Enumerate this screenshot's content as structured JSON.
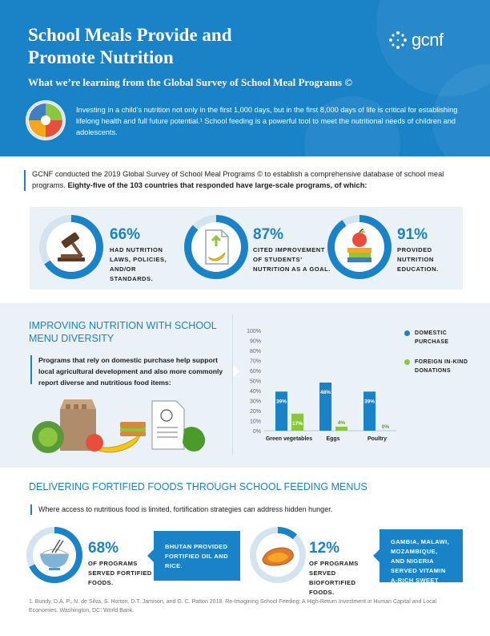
{
  "header": {
    "title_line1": "School Meals Provide and",
    "title_line2": "Promote Nutrition",
    "subtitle": "What we’re learning from the Global Survey of School Meal Programs ©",
    "logo_text": "gcnf",
    "intro": "Investing in a child’s nutrition not only in the first 1,000 days, but in the first 8,000 days of life is critical for establishing lifelong health and full future potential.¹ School feeding is a powerful tool to meet the nutritional needs of children and adolescents.",
    "color": "#1a82c7"
  },
  "survey": {
    "text_plain": "GCNF conducted the 2019 Global Survey of School Meal Programs © to establish a comprehensive database of school meal programs. ",
    "text_bold": "Eighty-five of the 103 countries that responded have large-scale programs, of which:",
    "stats": [
      {
        "pct_label": "66%",
        "value": 66,
        "label": "Had nutrition laws, policies, and/or standards.",
        "icon": "gavel-icon"
      },
      {
        "pct_label": "87%",
        "value": 87,
        "label": "Cited improvement of students’ nutrition as a goal.",
        "icon": "document-banana-icon"
      },
      {
        "pct_label": "91%",
        "value": 91,
        "label": "Provided nutrition education.",
        "icon": "apple-books-icon"
      }
    ]
  },
  "diversity": {
    "title": "IMPROVING NUTRITION WITH SCHOOL MENU DIVERSITY",
    "text": "Programs that rely on domestic purchase help support local agricultural development and also more commonly report diverse and nutritious food items:"
  },
  "chart_data": {
    "type": "bar",
    "categories": [
      "Green vegetables",
      "Eggs",
      "Poultry"
    ],
    "series": [
      {
        "name": "DOMESTIC PURCHASE",
        "values": [
          39,
          48,
          39
        ],
        "labels": [
          "39%",
          "48%",
          "39%"
        ],
        "color": "#1a82c7"
      },
      {
        "name": "FOREIGN IN-KIND DONATIONS",
        "values": [
          17,
          4,
          0
        ],
        "labels": [
          "17%",
          "4%",
          "0%"
        ],
        "color": "#8cc63f"
      }
    ],
    "ylim": [
      0,
      100
    ],
    "yticks": [
      "0%",
      "10%",
      "20%",
      "30%",
      "40%",
      "50%",
      "60%",
      "70%",
      "80%",
      "90%",
      "100%"
    ],
    "legend_position": "right",
    "grid": false
  },
  "fortified": {
    "title": "DELIVERING FORTIFIED FOODS THROUGH SCHOOL FEEDING MENUS",
    "text": "Where access to nutritious food is limited, fortification strategies can address hidden hunger.",
    "items": [
      {
        "pct_label": "68%",
        "value": 68,
        "label": "Of programs served fortified foods.",
        "callout": "Bhutan provided fortified oil and rice.",
        "icon": "rice-bowl-icon"
      },
      {
        "pct_label": "12%",
        "value": 12,
        "label": "Of programs served biofortified foods.",
        "callout": "Gambia, Malawi, Mozambique, and Nigeria served vitamin A-rich sweet potatoes.",
        "icon": "sweet-potato-icon"
      }
    ]
  },
  "footnote": "1. Bundy, D.A. P., N. de Silva, S. Horton, D.T. Jamison, and G. C. Patton 2018. Re-Imagining School Feeding: A High-Return Investment in Human Capital and Local Economies. Washington, DC: World Bank."
}
